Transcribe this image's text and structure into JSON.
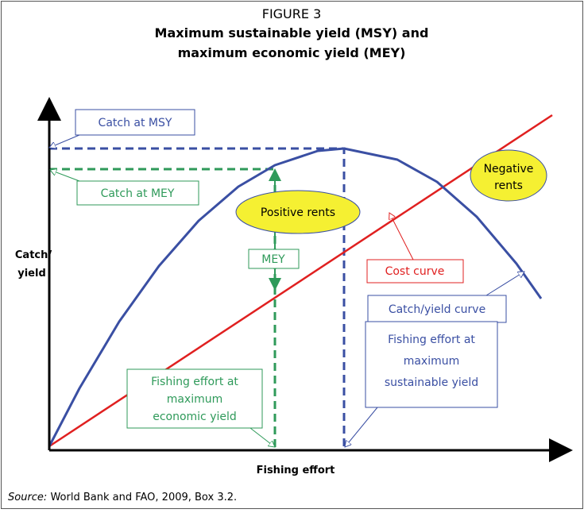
{
  "title": {
    "figure": "FIGURE 3",
    "line1": "Maximum sustainable yield (MSY) and",
    "line2": "maximum economic yield (MEY)"
  },
  "axes": {
    "y_label": [
      "Catch/",
      "yield"
    ],
    "x_label": "Fishing effort"
  },
  "labels": {
    "catch_msy": "Catch at MSY",
    "catch_mey": "Catch at MEY",
    "positive_rents": "Positive rents",
    "negative_rents": [
      "Negative",
      "rents"
    ],
    "mey": "MEY",
    "cost_curve": "Cost curve",
    "yield_curve": "Catch/yield curve",
    "effort_mey": [
      "Fishing effort at",
      "maximum",
      "economic yield"
    ],
    "effort_msy": [
      "Fishing effort at",
      "maximum",
      "sustainable yield"
    ]
  },
  "source": {
    "prefix": "Source:",
    "text": " World Bank and FAO, 2009, Box 3.2."
  }
}
